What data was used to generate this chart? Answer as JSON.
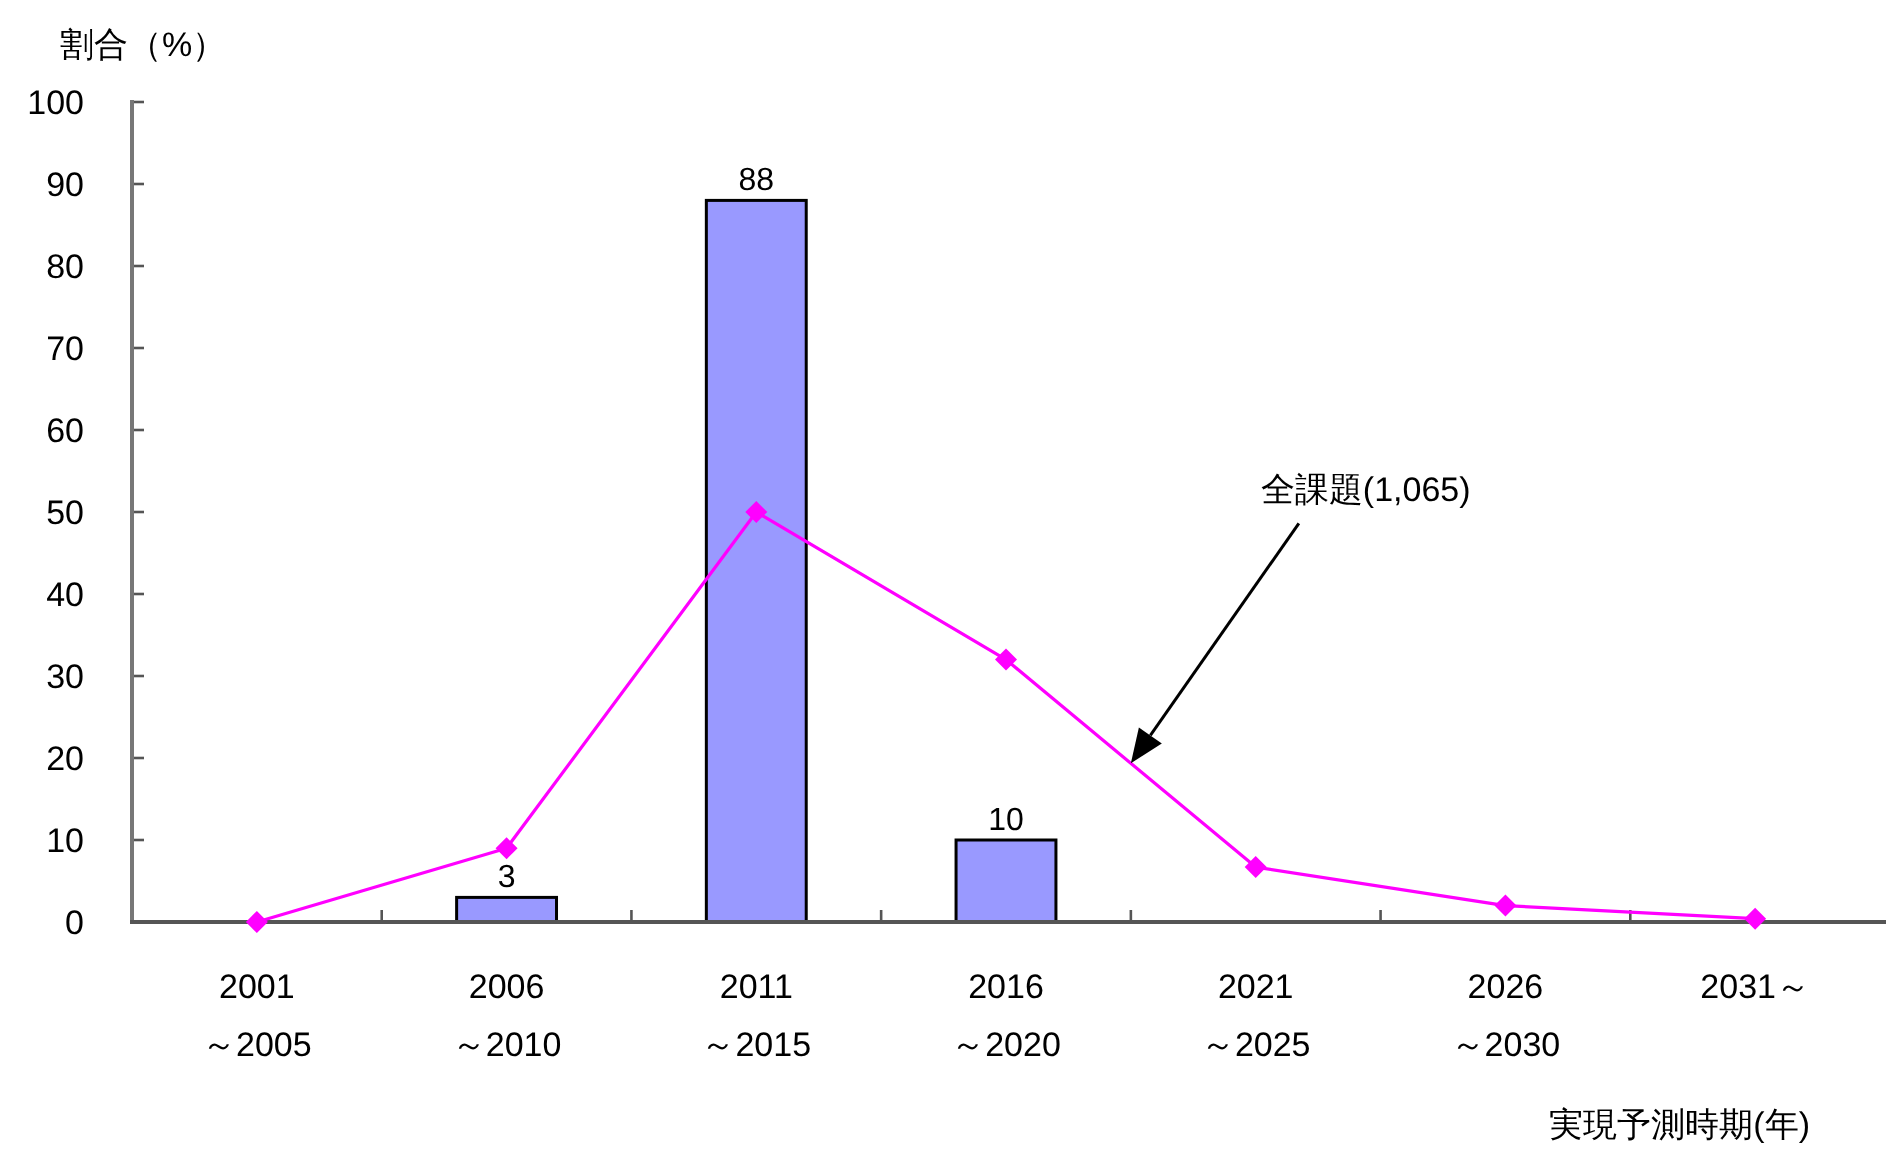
{
  "chart_data": {
    "type": "bar",
    "ylabel": "割合（%）",
    "xlabel": "実現予測時期(年)",
    "categories": [
      "2001\n～2005",
      "2006\n～2010",
      "2011\n～2015",
      "2016\n～2020",
      "2021\n～2025",
      "2026\n～2030",
      "2031～"
    ],
    "ylim": [
      0,
      100
    ],
    "yticks": [
      0,
      10,
      20,
      30,
      40,
      50,
      60,
      70,
      80,
      90,
      100
    ],
    "marker": "diamond",
    "series": [
      {
        "color": "#9999ff",
        "values": [
          null,
          3,
          88,
          10,
          null,
          null,
          null
        ],
        "value_labels": [
          null,
          "3",
          "88",
          "10",
          null,
          null,
          null
        ]
      },
      {
        "type": "line",
        "name": "全課題(1,065)",
        "color": "#ff00ff",
        "values": [
          0,
          9,
          50,
          32,
          6.7,
          2,
          0.4
        ]
      }
    ]
  }
}
